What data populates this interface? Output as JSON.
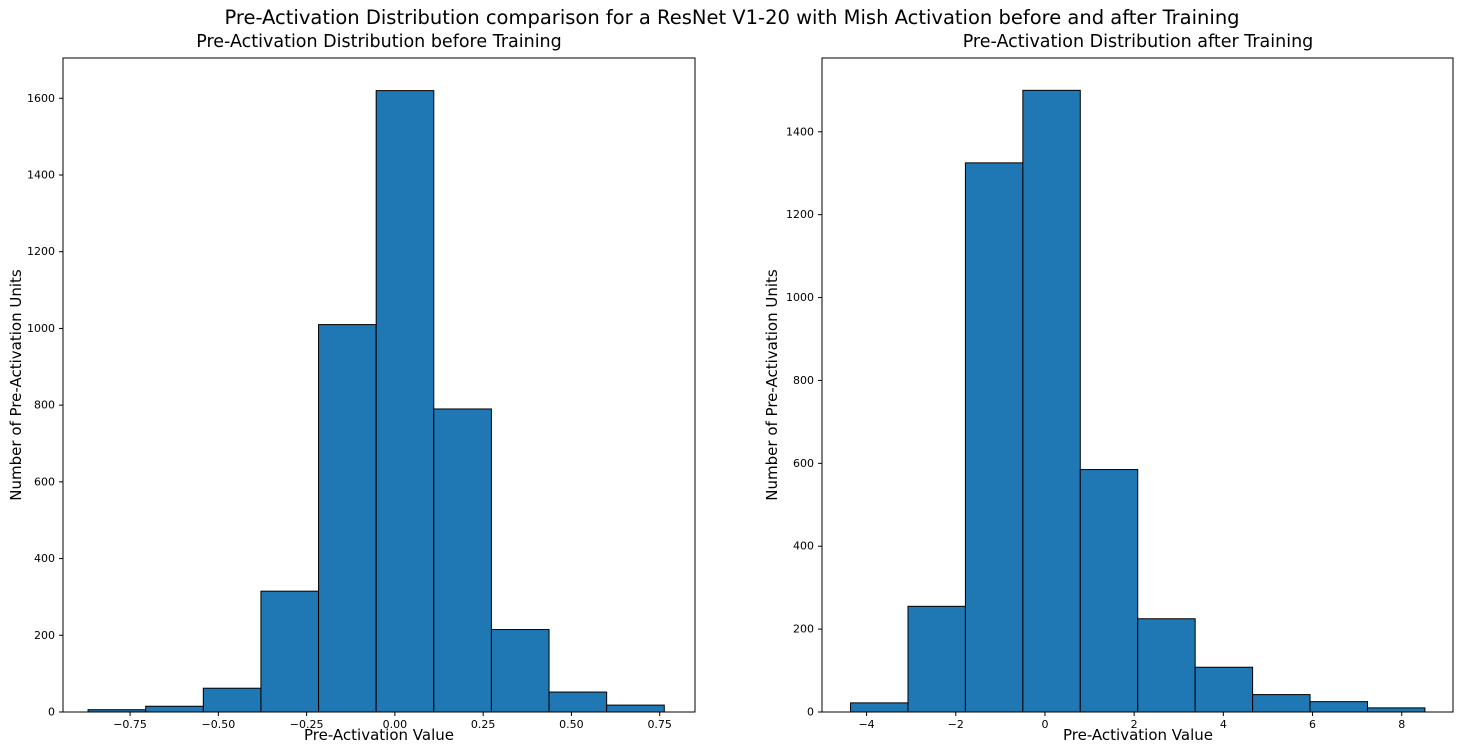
{
  "figure": {
    "suptitle": "Pre-Activation Distribution comparison for a ResNet V1-20 with Mish Activation before and after Training",
    "background": "#ffffff",
    "bar_fill": "#1f77b4",
    "bar_edge": "#000000",
    "axis_color": "#000000",
    "text_color": "#000000"
  },
  "chart_data": [
    {
      "type": "bar",
      "subtype": "histogram",
      "title": "Pre-Activation Distribution before Training",
      "xlabel": "Pre-Activation Value",
      "ylabel": "Number of Pre-Activation Units",
      "bin_start": -0.869,
      "bin_width": 0.1632,
      "counts": [
        6,
        15,
        62,
        315,
        1010,
        1620,
        790,
        215,
        52,
        18
      ],
      "xlim": [
        -0.94,
        0.85
      ],
      "ylim": [
        0,
        1705
      ],
      "xticks": [
        -0.75,
        -0.5,
        -0.25,
        0,
        0.25,
        0.5,
        0.75
      ],
      "xtick_labels": [
        "−0.75",
        "−0.50",
        "−0.25",
        "0.00",
        "0.25",
        "0.50",
        "0.75"
      ],
      "yticks": [
        0,
        200,
        400,
        600,
        800,
        1000,
        1200,
        1400,
        1600
      ],
      "grid": false,
      "legend": null
    },
    {
      "type": "bar",
      "subtype": "histogram",
      "title": "Pre-Activation Distribution after Training",
      "xlabel": "Pre-Activation Value",
      "ylabel": "Number of Pre-Activation Units",
      "bin_start": -4.36,
      "bin_width": 1.288,
      "counts": [
        22,
        255,
        1325,
        1500,
        585,
        225,
        108,
        42,
        25,
        10
      ],
      "xlim": [
        -5.0,
        9.15
      ],
      "ylim": [
        0,
        1578
      ],
      "xticks": [
        -4,
        -2,
        0,
        2,
        4,
        6,
        8
      ],
      "xtick_labels": [
        "−4",
        "−2",
        "0",
        "2",
        "4",
        "6",
        "8"
      ],
      "yticks": [
        0,
        200,
        400,
        600,
        800,
        1000,
        1200,
        1400
      ],
      "grid": false,
      "legend": null
    }
  ]
}
